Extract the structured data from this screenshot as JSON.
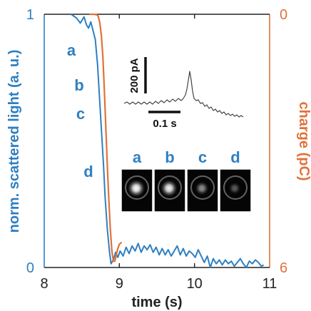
{
  "chart_data": {
    "type": "line",
    "xlabel": "time (s)",
    "ylabel_left": "norm. scattered light (a. u.)",
    "ylabel_right": "charge (pC)",
    "xlim": [
      8,
      11
    ],
    "ylim_left": [
      0,
      1
    ],
    "ylim_right_top": 0,
    "ylim_right_bottom": 6,
    "x_ticks": [
      "8",
      "9",
      "10",
      "11"
    ],
    "y_left_ticks": [
      "0",
      "1"
    ],
    "y_right_ticks": [
      "0",
      "6"
    ],
    "colors": {
      "light": "#2f7fc1",
      "charge": "#e0723a",
      "text": "#222222"
    },
    "series": [
      {
        "axis": "left",
        "points": [
          [
            8.36,
            1.0
          ],
          [
            8.43,
            0.985
          ],
          [
            8.48,
            0.965
          ],
          [
            8.53,
            0.99
          ],
          [
            8.56,
            0.96
          ],
          [
            8.59,
            0.945
          ],
          [
            8.62,
            0.97
          ],
          [
            8.65,
            0.935
          ],
          [
            8.68,
            0.9
          ],
          [
            8.71,
            0.8
          ],
          [
            8.73,
            0.7
          ],
          [
            8.75,
            0.6
          ],
          [
            8.77,
            0.5
          ],
          [
            8.79,
            0.4
          ],
          [
            8.81,
            0.28
          ],
          [
            8.84,
            0.15
          ],
          [
            8.87,
            0.06
          ],
          [
            8.89,
            0.015
          ],
          [
            8.92,
            0.03
          ],
          [
            8.95,
            0.06
          ],
          [
            8.98,
            0.04
          ],
          [
            9.01,
            0.065
          ],
          [
            9.05,
            0.045
          ],
          [
            9.09,
            0.08
          ],
          [
            9.13,
            0.055
          ],
          [
            9.17,
            0.085
          ],
          [
            9.21,
            0.065
          ],
          [
            9.25,
            0.095
          ],
          [
            9.29,
            0.06
          ],
          [
            9.33,
            0.085
          ],
          [
            9.37,
            0.07
          ],
          [
            9.41,
            0.09
          ],
          [
            9.45,
            0.06
          ],
          [
            9.49,
            0.08
          ],
          [
            9.53,
            0.05
          ],
          [
            9.57,
            0.075
          ],
          [
            9.61,
            0.05
          ],
          [
            9.65,
            0.07
          ],
          [
            9.69,
            0.045
          ],
          [
            9.73,
            0.065
          ],
          [
            9.77,
            0.085
          ],
          [
            9.81,
            0.05
          ],
          [
            9.85,
            0.075
          ],
          [
            9.89,
            0.045
          ],
          [
            9.93,
            0.065
          ],
          [
            9.97,
            0.055
          ],
          [
            10.01,
            0.04
          ],
          [
            10.05,
            0.07
          ],
          [
            10.09,
            0.045
          ],
          [
            10.13,
            0.02
          ],
          [
            10.17,
            0.045
          ],
          [
            10.21,
            0.0
          ],
          [
            10.25,
            0.035
          ],
          [
            10.29,
            0.015
          ],
          [
            10.33,
            0.03
          ],
          [
            10.37,
            0.01
          ],
          [
            10.41,
            0.03
          ],
          [
            10.45,
            0.015
          ],
          [
            10.49,
            0.025
          ],
          [
            10.53,
            0.005
          ],
          [
            10.57,
            0.02
          ],
          [
            10.61,
            0.035
          ],
          [
            10.65,
            0.015
          ],
          [
            10.69,
            0.0
          ],
          [
            10.73,
            0.025
          ],
          [
            10.77,
            0.015
          ],
          [
            10.81,
            0.03
          ],
          [
            10.85,
            0.02
          ],
          [
            10.89,
            0.005
          ],
          [
            10.92,
            0.01
          ]
        ]
      },
      {
        "axis": "right",
        "points": [
          [
            8.6,
            0.0
          ],
          [
            8.66,
            0.0
          ],
          [
            8.7,
            0.01
          ],
          [
            8.72,
            0.05
          ],
          [
            8.74,
            0.2
          ],
          [
            8.76,
            0.5
          ],
          [
            8.78,
            1.0
          ],
          [
            8.8,
            1.8
          ],
          [
            8.82,
            2.7
          ],
          [
            8.84,
            3.6
          ],
          [
            8.86,
            4.4
          ],
          [
            8.88,
            5.1
          ],
          [
            8.9,
            5.6
          ],
          [
            8.92,
            5.85
          ],
          [
            8.94,
            5.85
          ],
          [
            8.96,
            5.7
          ],
          [
            8.98,
            5.55
          ],
          [
            9.0,
            5.45
          ],
          [
            9.03,
            5.4
          ]
        ]
      }
    ],
    "point_labels": [
      "a",
      "b",
      "c",
      "d"
    ],
    "inset_trace": {
      "scale_current": "200 pA",
      "scale_time": "0.1 s"
    },
    "inset_images": {
      "labels": [
        "a",
        "b",
        "c",
        "d"
      ],
      "brightness": [
        1.0,
        0.95,
        0.55,
        0.35
      ]
    }
  }
}
